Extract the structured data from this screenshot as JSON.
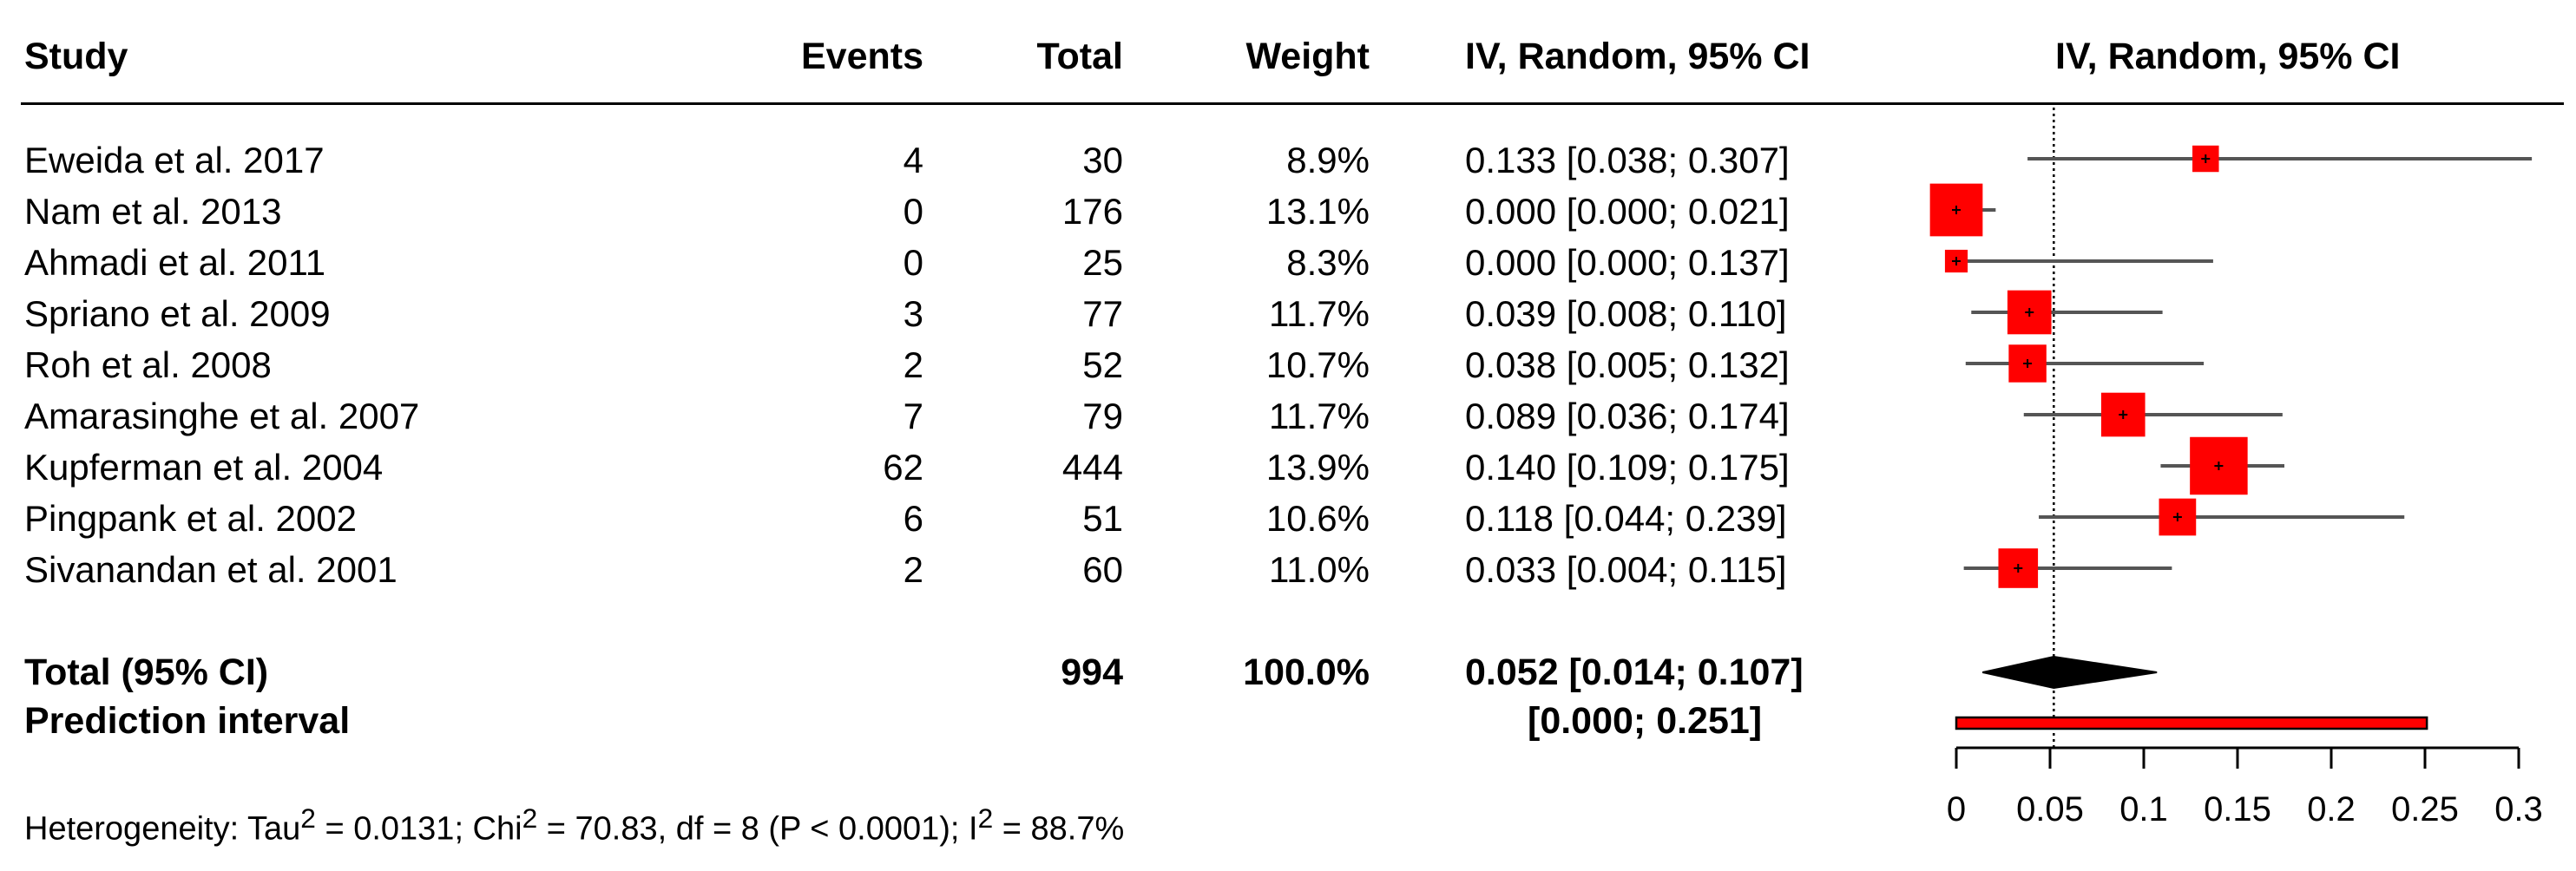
{
  "headers": {
    "study": "Study",
    "events": "Events",
    "total": "Total",
    "weight": "Weight",
    "ci": "IV, Random, 95% CI",
    "plot": "IV, Random, 95% CI"
  },
  "studies": [
    {
      "name": "Eweida et al. 2017",
      "events": "4",
      "total": "30",
      "weight": "8.9%",
      "ci": "0.133 [0.038; 0.307]"
    },
    {
      "name": "Nam et al. 2013",
      "events": "0",
      "total": "176",
      "weight": "13.1%",
      "ci": "0.000 [0.000; 0.021]"
    },
    {
      "name": "Ahmadi et al. 2011",
      "events": "0",
      "total": "25",
      "weight": "8.3%",
      "ci": "0.000 [0.000; 0.137]"
    },
    {
      "name": "Spriano et al. 2009",
      "events": "3",
      "total": "77",
      "weight": "11.7%",
      "ci": "0.039 [0.008; 0.110]"
    },
    {
      "name": "Roh et al. 2008",
      "events": "2",
      "total": "52",
      "weight": "10.7%",
      "ci": "0.038 [0.005; 0.132]"
    },
    {
      "name": "Amarasinghe et al. 2007",
      "events": "7",
      "total": "79",
      "weight": "11.7%",
      "ci": "0.089 [0.036; 0.174]"
    },
    {
      "name": "Kupferman et al. 2004",
      "events": "62",
      "total": "444",
      "weight": "13.9%",
      "ci": "0.140 [0.109; 0.175]"
    },
    {
      "name": "Pingpank et al. 2002",
      "events": "6",
      "total": "51",
      "weight": "10.6%",
      "ci": "0.118 [0.044; 0.239]"
    },
    {
      "name": "Sivanandan et al. 2001",
      "events": "2",
      "total": "60",
      "weight": "11.0%",
      "ci": "0.033 [0.004; 0.115]"
    }
  ],
  "total": {
    "label": "Total (95% CI)",
    "total": "994",
    "weight": "100.0%",
    "ci": "0.052 [0.014; 0.107]"
  },
  "prediction": {
    "label": "Prediction interval",
    "ci": "[0.000; 0.251]"
  },
  "heterogeneity": {
    "p1": "Heterogeneity: Tau",
    "sup1": "2",
    "p2": " = 0.0131; Chi",
    "sup2": "2",
    "p3": " = 70.83, df = 8 (P < 0.0001); I",
    "sup3": "2",
    "p4": " = 88.7%"
  },
  "colors": {
    "box": "#ff0000",
    "line": "#555555",
    "diamond": "#000000"
  },
  "chart_data": {
    "type": "forest",
    "xlim": [
      0,
      0.3
    ],
    "x_ticks": [
      0,
      0.05,
      0.1,
      0.15,
      0.2,
      0.25,
      0.3
    ],
    "x_tick_labels": [
      "0",
      "0.05",
      "0.1",
      "0.15",
      "0.2",
      "0.25",
      "0.3"
    ],
    "reference_line": 0.052,
    "studies": [
      {
        "est": 0.133,
        "lo": 0.038,
        "hi": 0.307,
        "weight": 8.9
      },
      {
        "est": 0.0,
        "lo": 0.0,
        "hi": 0.021,
        "weight": 13.1
      },
      {
        "est": 0.0,
        "lo": 0.0,
        "hi": 0.137,
        "weight": 8.3
      },
      {
        "est": 0.039,
        "lo": 0.008,
        "hi": 0.11,
        "weight": 11.7
      },
      {
        "est": 0.038,
        "lo": 0.005,
        "hi": 0.132,
        "weight": 10.7
      },
      {
        "est": 0.089,
        "lo": 0.036,
        "hi": 0.174,
        "weight": 11.7
      },
      {
        "est": 0.14,
        "lo": 0.109,
        "hi": 0.175,
        "weight": 13.9
      },
      {
        "est": 0.118,
        "lo": 0.044,
        "hi": 0.239,
        "weight": 10.6
      },
      {
        "est": 0.033,
        "lo": 0.004,
        "hi": 0.115,
        "weight": 11.0
      }
    ],
    "pooled": {
      "est": 0.052,
      "lo": 0.014,
      "hi": 0.107
    },
    "prediction": {
      "lo": 0.0,
      "hi": 0.251
    }
  }
}
